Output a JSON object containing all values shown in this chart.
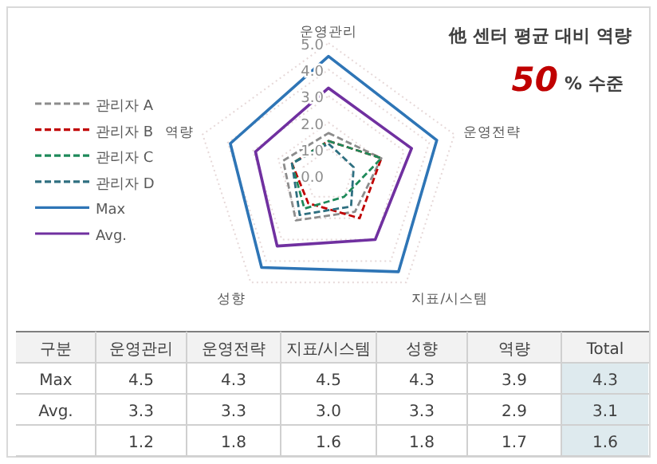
{
  "chart_data": [
    {
      "type": "radar",
      "title": "他 센터 평균 대비 역량",
      "annotations": [
        "50",
        "% 수준"
      ],
      "categories": [
        "운영관리",
        "운영전략",
        "지표/시스템",
        "성향",
        "역량"
      ],
      "ylim": [
        0,
        5
      ],
      "yticks": [
        {
          "value": 0,
          "label": "0.0"
        },
        {
          "value": 1,
          "label": "1.0"
        },
        {
          "value": 2,
          "label": "2.0"
        },
        {
          "value": 3,
          "label": "3.0"
        },
        {
          "value": 4,
          "label": "4.0"
        },
        {
          "value": 5,
          "label": "5.0"
        }
      ],
      "grid": true,
      "legend": "left",
      "series": [
        {
          "name": "관리자 A",
          "color": "#8c8c8c",
          "line_style": "dashed",
          "values": [
            1.6,
            2.1,
            1.7,
            2.1,
            1.8
          ]
        },
        {
          "name": "관리자 B",
          "color": "#c00000",
          "line_style": "dashed",
          "values": [
            1.3,
            2.1,
            2.0,
            1.3,
            1.45
          ]
        },
        {
          "name": "관리자 C",
          "color": "#1e8a5a",
          "line_style": "dashed",
          "values": [
            1.3,
            2.1,
            1.0,
            1.55,
            1.45
          ]
        },
        {
          "name": "관리자 D",
          "color": "#2e6f80",
          "line_style": "dashed",
          "values": [
            1.2,
            1.0,
            1.45,
            1.85,
            1.45
          ]
        },
        {
          "name": "Max",
          "color": "#2e75b6",
          "line_style": "solid",
          "values": [
            4.5,
            4.3,
            4.5,
            4.3,
            3.9
          ]
        },
        {
          "name": "Avg.",
          "color": "#7030a0",
          "line_style": "solid",
          "values": [
            3.3,
            3.3,
            3.0,
            3.3,
            2.9
          ]
        }
      ]
    },
    {
      "type": "heatmap",
      "ylabel": "구분",
      "categories": [
        "운영관리",
        "운영전략",
        "지표/시스템",
        "성향",
        "역량",
        "Total"
      ],
      "y_categories": [
        "Max",
        "Avg.",
        null
      ],
      "cells": [
        [
          4.5,
          4.3,
          4.5,
          4.3,
          3.9,
          4.3
        ],
        [
          3.3,
          3.3,
          3.0,
          3.3,
          2.9,
          3.1
        ],
        [
          1.2,
          1.8,
          1.6,
          1.8,
          1.7,
          1.6
        ]
      ],
      "cell_labels": [
        [
          "4.5",
          "4.3",
          "4.5",
          "4.3",
          "3.9",
          "4.3"
        ],
        [
          "3.3",
          "3.3",
          "3.0",
          "3.3",
          "2.9",
          "3.1"
        ],
        [
          "1.2",
          "1.8",
          "1.6",
          "1.8",
          "1.7",
          "1.6"
        ]
      ]
    }
  ]
}
